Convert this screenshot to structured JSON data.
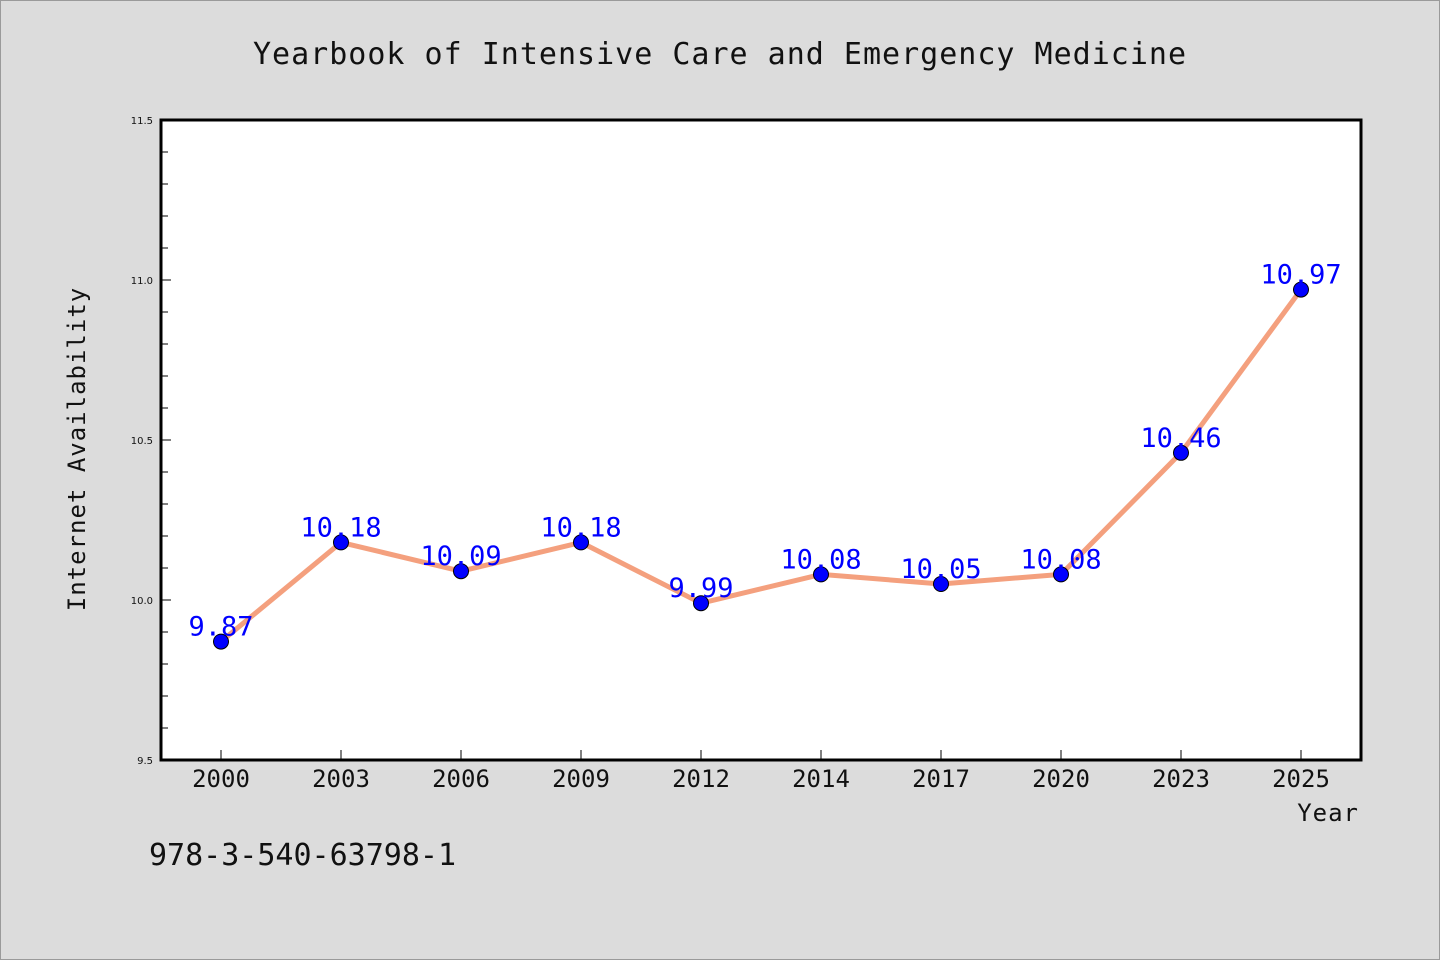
{
  "chart_data": {
    "type": "line",
    "title": "Yearbook of Intensive Care and Emergency Medicine",
    "xlabel": "Year",
    "ylabel": "Internet Availability",
    "categories": [
      "2000",
      "2003",
      "2006",
      "2009",
      "2012",
      "2014",
      "2017",
      "2020",
      "2023",
      "2025"
    ],
    "series": [
      {
        "values": [
          9.87,
          10.18,
          10.09,
          10.18,
          9.99,
          10.08,
          10.05,
          10.08,
          10.46,
          10.97
        ],
        "labels": [
          "9.87",
          "10.18",
          "10.09",
          "10.18",
          "9.99",
          "10.08",
          "10.05",
          "10.08",
          "10.46",
          "10.97"
        ],
        "line_color": "#f4a07e",
        "marker_color": "#0000ff"
      }
    ],
    "ylim": [
      9.5,
      11.5
    ],
    "yticks": [
      9.5,
      10.0,
      10.5,
      11.0,
      11.5
    ],
    "ytick_labels": [
      "9.5",
      "10.0",
      "10.5",
      "11.0",
      "11.5"
    ],
    "grid": false,
    "legend": "none"
  },
  "annotation": "978-3-540-63798-1",
  "colors": {
    "background": "#dcdcdc",
    "plot_background": "#ffffff",
    "line": "#f4a07e",
    "marker": "#0000ff",
    "data_label": "#0000ff"
  }
}
